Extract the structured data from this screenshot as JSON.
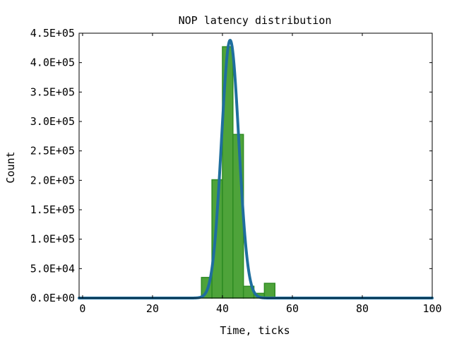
{
  "chart_data": {
    "type": "bar",
    "title": "NOP latency distribution",
    "xlabel": "Time, ticks",
    "ylabel": "Count",
    "xlim": [
      -1,
      100
    ],
    "ylim": [
      0,
      450000
    ],
    "x_ticks": [
      0,
      20,
      40,
      60,
      80,
      100
    ],
    "x_tick_labels": [
      "0",
      "20",
      "40",
      "60",
      "80",
      "100"
    ],
    "y_ticks": [
      0,
      50000,
      100000,
      150000,
      200000,
      250000,
      300000,
      350000,
      400000,
      450000
    ],
    "y_tick_labels": [
      "0.0E+00",
      "5.0E+04",
      "1.0E+05",
      "1.5E+05",
      "2.0E+05",
      "2.5E+05",
      "3.0E+05",
      "3.5E+05",
      "4.0E+05",
      "4.5E+05"
    ],
    "grid": false,
    "histogram": {
      "bin_width": 3,
      "bins": [
        {
          "x": 34,
          "count": 35000
        },
        {
          "x": 37,
          "count": 201000
        },
        {
          "x": 40,
          "count": 427000
        },
        {
          "x": 43,
          "count": 278000
        },
        {
          "x": 46,
          "count": 20000
        },
        {
          "x": 49,
          "count": 8000
        },
        {
          "x": 52,
          "count": 25000
        },
        {
          "x": 55,
          "count": 1000
        }
      ],
      "color": "#4ea33a",
      "edge_color": "#2e8b22"
    },
    "fit_curve": {
      "type": "gaussian",
      "peak": 438000,
      "mean": 42.2,
      "sigma": 2.5,
      "color": "#1f6e9e"
    }
  }
}
